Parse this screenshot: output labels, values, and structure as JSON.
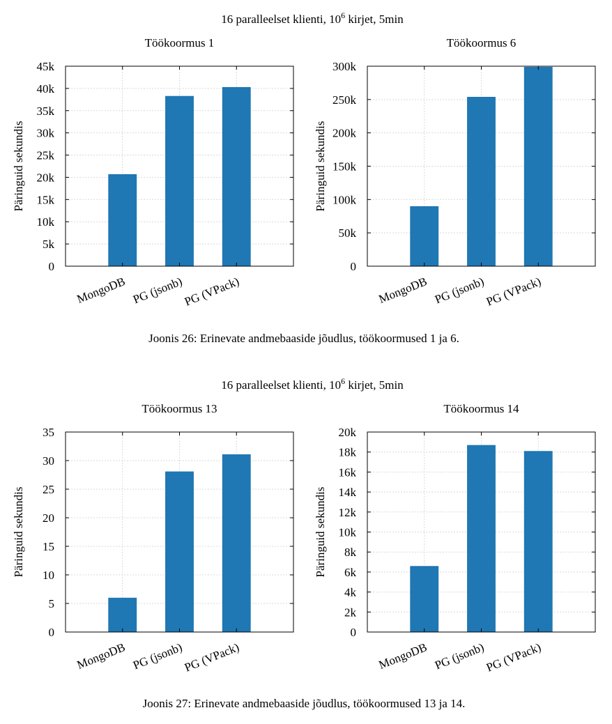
{
  "figures": [
    {
      "suptitle": {
        "pre": "16 paralleelset klienti, ",
        "base": "10",
        "exp": "6",
        "post": " kirjet, 5min"
      },
      "caption": "Joonis 26: Erinevate andmebaaside jõudlus, töökoormused 1 ja 6."
    },
    {
      "suptitle": {
        "pre": "16 paralleelset klienti, ",
        "base": "10",
        "exp": "6",
        "post": " kirjet, 5min"
      },
      "caption": "Joonis 27: Erinevate andmebaaside jõudlus, töökoormused 13 ja 14."
    }
  ],
  "colors": {
    "bar": "#1f77b4",
    "grid": "#d9d9d9",
    "axis": "#000000"
  },
  "chart_data": [
    {
      "type": "bar",
      "title": "Töökoormus 1",
      "xlabel": "",
      "ylabel": "Päringuid sekundis",
      "categories": [
        "MongoDB",
        "PG (jsonb)",
        "PG (VPack)"
      ],
      "values": [
        20700,
        38300,
        40300
      ],
      "ylim": [
        0,
        45000
      ],
      "yticks": [
        0,
        5000,
        10000,
        15000,
        20000,
        25000,
        30000,
        35000,
        40000,
        45000
      ],
      "yticklabels": [
        "0",
        "5k",
        "10k",
        "15k",
        "20k",
        "25k",
        "30k",
        "35k",
        "40k",
        "45k"
      ],
      "grid": true
    },
    {
      "type": "bar",
      "title": "Töökoormus 6",
      "xlabel": "",
      "ylabel": "Päringuid sekundis",
      "categories": [
        "MongoDB",
        "PG (jsonb)",
        "PG (VPack)"
      ],
      "values": [
        90000,
        254000,
        299000
      ],
      "ylim": [
        0,
        300000
      ],
      "yticks": [
        0,
        50000,
        100000,
        150000,
        200000,
        250000,
        300000
      ],
      "yticklabels": [
        "0",
        "50k",
        "100k",
        "150k",
        "200k",
        "250k",
        "300k"
      ],
      "grid": true
    },
    {
      "type": "bar",
      "title": "Töökoormus 13",
      "xlabel": "",
      "ylabel": "Päringuid sekundis",
      "categories": [
        "MongoDB",
        "PG (jsonb)",
        "PG (VPack)"
      ],
      "values": [
        6,
        28.1,
        31.1
      ],
      "ylim": [
        0,
        35
      ],
      "yticks": [
        0,
        5,
        10,
        15,
        20,
        25,
        30,
        35
      ],
      "yticklabels": [
        "0",
        "5",
        "10",
        "15",
        "20",
        "25",
        "30",
        "35"
      ],
      "grid": true
    },
    {
      "type": "bar",
      "title": "Töökoormus 14",
      "xlabel": "",
      "ylabel": "Päringuid sekundis",
      "categories": [
        "MongoDB",
        "PG (jsonb)",
        "PG (VPack)"
      ],
      "values": [
        6600,
        18700,
        18100
      ],
      "ylim": [
        0,
        20000
      ],
      "yticks": [
        0,
        2000,
        4000,
        6000,
        8000,
        10000,
        12000,
        14000,
        16000,
        18000,
        20000
      ],
      "yticklabels": [
        "0",
        "2k",
        "4k",
        "6k",
        "8k",
        "10k",
        "12k",
        "14k",
        "16k",
        "18k",
        "20k"
      ],
      "grid": true
    }
  ]
}
